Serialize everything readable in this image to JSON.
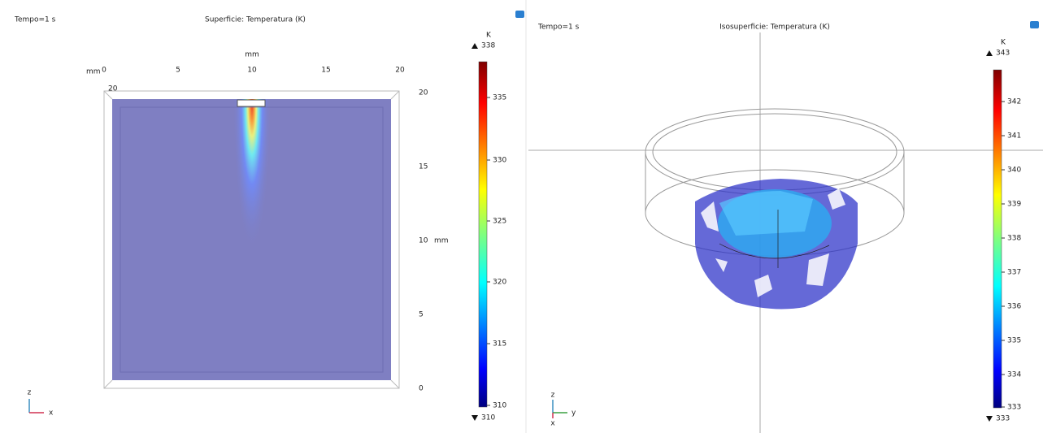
{
  "panels": [
    {
      "time": "Tempo=1 s",
      "title": "Superficie: Temperatura (K)",
      "x_unit": "mm",
      "x_ticks": [
        "0",
        "5",
        "10",
        "15",
        "20"
      ],
      "corner_unit": "mm",
      "corner_tick": "20",
      "z_unit": "mm",
      "z_ticks": [
        "20",
        "15",
        "10",
        "5",
        "0"
      ],
      "colorbar": {
        "unit": "K",
        "max": "338",
        "min": "310",
        "ticks": [
          "335",
          "330",
          "325",
          "320",
          "315",
          "310"
        ]
      },
      "axes": {
        "vertical": "z",
        "horizontal": "x"
      }
    },
    {
      "time": "Tempo=1 s",
      "title": "Isosuperficie: Temperatura (K)",
      "colorbar": {
        "unit": "K",
        "max": "343",
        "min": "333",
        "ticks": [
          "342",
          "341",
          "340",
          "339",
          "338",
          "337",
          "336",
          "335",
          "334",
          "333"
        ]
      },
      "axes": {
        "vertical": "z",
        "horizontal": "y",
        "depth": "x"
      }
    }
  ]
}
